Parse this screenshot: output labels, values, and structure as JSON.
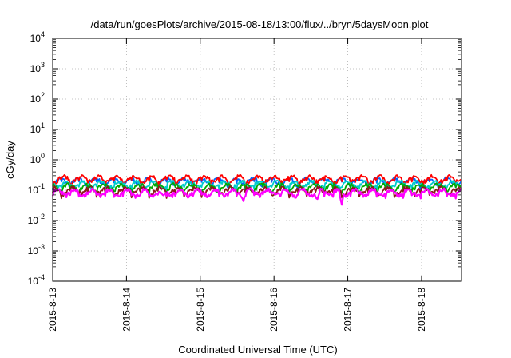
{
  "chart_data": {
    "type": "line",
    "title": "/data/run/goesPlots/archive/2015-08-18/13:00/flux/../bryn/5daysMoon.plot",
    "xlabel": "Coordinated Universal Time (UTC)",
    "ylabel": "cGy/day",
    "y_scale": "log",
    "ylim": [
      0.0001,
      10000
    ],
    "xlim": [
      "2015-08-13 00:00",
      "2015-08-18 13:00"
    ],
    "x_ticks": [
      "2015-8-13",
      "2015-8-14",
      "2015-8-15",
      "2015-8-16",
      "2015-8-17",
      "2015-8-18"
    ],
    "y_ticks": [
      {
        "base": "10",
        "exp": "4"
      },
      {
        "base": "10",
        "exp": "3"
      },
      {
        "base": "10",
        "exp": "2"
      },
      {
        "base": "10",
        "exp": "1"
      },
      {
        "base": "10",
        "exp": "0"
      },
      {
        "base": "10",
        "exp": "-1"
      },
      {
        "base": "10",
        "exp": "-2"
      },
      {
        "base": "10",
        "exp": "-3"
      },
      {
        "base": "10",
        "exp": "-4"
      }
    ],
    "grid": true,
    "legend": "none",
    "series": [
      {
        "color": "#ff00ff",
        "typical_value": 0.085,
        "dips": [
          {
            "at": "2015-08-14 04:00",
            "value": 0.06
          },
          {
            "at": "2015-08-14 12:00",
            "value": 0.065
          },
          {
            "at": "2015-08-15 14:00",
            "value": 0.04
          },
          {
            "at": "2015-08-16 07:00",
            "value": 0.05
          },
          {
            "at": "2015-08-16 14:00",
            "value": 0.045
          },
          {
            "at": "2015-08-16 22:00",
            "value": 0.03
          }
        ]
      },
      {
        "color": "#8b1a1a",
        "typical_value": 0.1
      },
      {
        "color": "#00aa00",
        "typical_value": 0.13
      },
      {
        "color": "#00cccc",
        "typical_value": 0.16
      },
      {
        "color": "#ff0000",
        "typical_value": 0.24
      },
      {
        "color": "#0066ff",
        "typical_value": 0.2
      }
    ]
  }
}
